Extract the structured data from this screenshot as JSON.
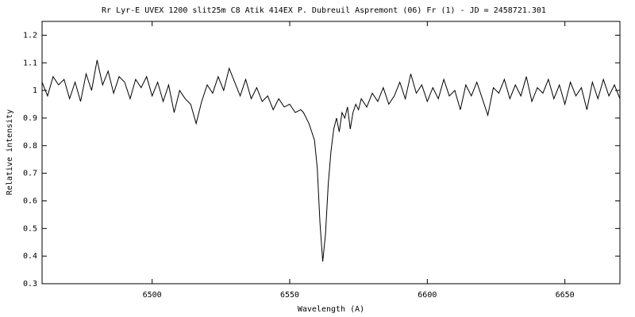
{
  "chart_data": {
    "type": "line",
    "title": "Rr Lyr-E  UVEX 1200 slit25m  C8 Atik 414EX P. Dubreuil  Aspremont (06) Fr (1) - JD = 2458721.301",
    "xlabel": "Wavelength (A)",
    "ylabel": "Relative intensity",
    "x": [
      6460,
      6462,
      6464,
      6466,
      6468,
      6470,
      6472,
      6474,
      6476,
      6478,
      6480,
      6482,
      6484,
      6486,
      6488,
      6490,
      6492,
      6494,
      6496,
      6498,
      6500,
      6502,
      6504,
      6506,
      6508,
      6510,
      6512,
      6514,
      6516,
      6518,
      6520,
      6522,
      6524,
      6526,
      6528,
      6530,
      6532,
      6534,
      6536,
      6538,
      6540,
      6542,
      6544,
      6546,
      6548,
      6550,
      6552,
      6554,
      6555,
      6556,
      6557,
      6558,
      6559,
      6560,
      6561,
      6562,
      6563,
      6564,
      6565,
      6566,
      6567,
      6568,
      6569,
      6570,
      6571,
      6572,
      6573,
      6574,
      6575,
      6576,
      6578,
      6580,
      6582,
      6584,
      6586,
      6588,
      6590,
      6592,
      6594,
      6596,
      6598,
      6600,
      6602,
      6604,
      6606,
      6608,
      6610,
      6612,
      6614,
      6616,
      6618,
      6620,
      6622,
      6624,
      6626,
      6628,
      6630,
      6632,
      6634,
      6636,
      6638,
      6640,
      6642,
      6644,
      6646,
      6648,
      6650,
      6652,
      6654,
      6656,
      6658,
      6660,
      6662,
      6664,
      6666,
      6668,
      6670
    ],
    "series": [
      {
        "color": "#000000",
        "values": [
          1.03,
          0.98,
          1.05,
          1.02,
          1.04,
          0.97,
          1.03,
          0.96,
          1.06,
          1.0,
          1.11,
          1.02,
          1.07,
          0.99,
          1.05,
          1.03,
          0.97,
          1.04,
          1.01,
          1.05,
          0.98,
          1.03,
          0.96,
          1.02,
          0.92,
          1.0,
          0.97,
          0.95,
          0.88,
          0.96,
          1.02,
          0.99,
          1.05,
          1.0,
          1.08,
          1.03,
          0.98,
          1.04,
          0.97,
          1.01,
          0.96,
          0.98,
          0.93,
          0.97,
          0.94,
          0.95,
          0.92,
          0.93,
          0.92,
          0.9,
          0.88,
          0.85,
          0.82,
          0.72,
          0.52,
          0.38,
          0.48,
          0.66,
          0.78,
          0.86,
          0.9,
          0.85,
          0.92,
          0.9,
          0.94,
          0.86,
          0.92,
          0.95,
          0.93,
          0.97,
          0.94,
          0.99,
          0.96,
          1.01,
          0.95,
          0.98,
          1.03,
          0.97,
          1.06,
          0.99,
          1.02,
          0.96,
          1.01,
          0.97,
          1.04,
          0.98,
          1.0,
          0.93,
          1.02,
          0.98,
          1.03,
          0.97,
          0.91,
          1.01,
          0.99,
          1.04,
          0.97,
          1.02,
          0.98,
          1.05,
          0.96,
          1.01,
          0.99,
          1.04,
          0.97,
          1.02,
          0.95,
          1.03,
          0.98,
          1.01,
          0.93,
          1.03,
          0.97,
          1.04,
          0.98,
          1.02,
          0.97
        ]
      }
    ],
    "xlim": [
      6460,
      6670
    ],
    "ylim": [
      0.3,
      1.25
    ],
    "xticks": [
      6500,
      6550,
      6600,
      6650
    ],
    "yticks": [
      0.3,
      0.4,
      0.5,
      0.6,
      0.7,
      0.8,
      0.9,
      1,
      1.1,
      1.2
    ],
    "grid": false
  }
}
